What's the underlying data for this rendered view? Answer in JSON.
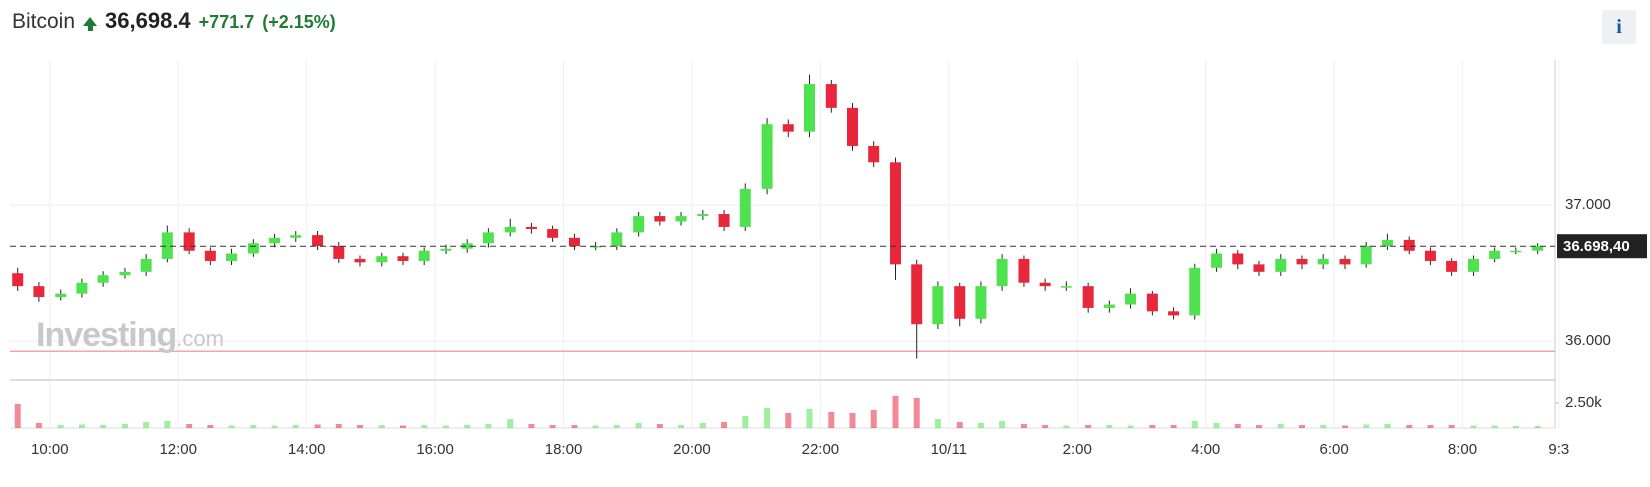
{
  "header": {
    "name": "Bitcoin",
    "price": "36,698.4",
    "change": "+771.7",
    "change_pct": "(+2.15%)",
    "info": "i"
  },
  "watermark": {
    "brand": "Investing",
    "suffix": ".com"
  },
  "chart_data": [
    {
      "type": "candlestick",
      "x": [
        9.5,
        9.83,
        10.17,
        10.5,
        10.83,
        11.17,
        11.5,
        11.83,
        12.17,
        12.5,
        12.83,
        13.17,
        13.5,
        13.83,
        14.17,
        14.5,
        14.83,
        15.17,
        15.5,
        15.83,
        16.17,
        16.5,
        16.83,
        17.17,
        17.5,
        17.83,
        18.17,
        18.5,
        18.83,
        19.17,
        19.5,
        19.83,
        20.17,
        20.5,
        20.83,
        21.17,
        21.5,
        21.83,
        22.17,
        22.5,
        22.83,
        23.17,
        23.5,
        23.83,
        24.17,
        24.5,
        24.83,
        25.17,
        25.5,
        25.83,
        26.17,
        26.5,
        26.83,
        27.17,
        27.5,
        27.83,
        28.17,
        28.5,
        28.83,
        29.17,
        29.5,
        29.83,
        30.17,
        30.5,
        30.83,
        31.17,
        31.5,
        31.83,
        32.17,
        32.5,
        32.83,
        33.17
      ],
      "open": [
        36500,
        36405,
        36325,
        36350,
        36430,
        36485,
        36510,
        36605,
        36800,
        36665,
        36590,
        36645,
        36720,
        36760,
        36780,
        36700,
        36605,
        36580,
        36625,
        36590,
        36665,
        36680,
        36720,
        36800,
        36840,
        36825,
        36760,
        36700,
        36700,
        36800,
        36920,
        36880,
        36920,
        36935,
        36840,
        37120,
        37595,
        37540,
        37890,
        37715,
        37435,
        37315,
        36565,
        36125,
        36405,
        36165,
        36405,
        36605,
        36430,
        36405,
        36405,
        36245,
        36270,
        36350,
        36220,
        36190,
        36540,
        36645,
        36565,
        36510,
        36605,
        36565,
        36605,
        36565,
        36700,
        36745,
        36665,
        36590,
        36510,
        36605,
        36665,
        36665
      ],
      "high": [
        36540,
        36435,
        36380,
        36460,
        36515,
        36540,
        36640,
        36850,
        36830,
        36690,
        36680,
        36750,
        36790,
        36810,
        36810,
        36730,
        36630,
        36650,
        36650,
        36690,
        36710,
        36750,
        36830,
        36900,
        36870,
        36850,
        36790,
        36730,
        36830,
        36950,
        36950,
        36950,
        36965,
        36965,
        37160,
        37640,
        37630,
        37960,
        37920,
        37750,
        37470,
        37350,
        36600,
        36440,
        36430,
        36440,
        36640,
        36630,
        36460,
        36440,
        36430,
        36300,
        36390,
        36370,
        36250,
        36570,
        36680,
        36670,
        36590,
        36640,
        36630,
        36640,
        36630,
        36730,
        36790,
        36770,
        36690,
        36610,
        36630,
        36690,
        36690,
        36720
      ],
      "low": [
        36370,
        36290,
        36300,
        36320,
        36400,
        36460,
        36480,
        36580,
        36640,
        36560,
        36560,
        36620,
        36690,
        36730,
        36670,
        36575,
        36550,
        36550,
        36560,
        36560,
        36640,
        36650,
        36690,
        36770,
        36790,
        36730,
        36670,
        36670,
        36670,
        36770,
        36850,
        36850,
        36890,
        36810,
        36810,
        37080,
        37500,
        37500,
        37680,
        37400,
        37280,
        36450,
        35873,
        36090,
        36110,
        36130,
        36370,
        36400,
        36370,
        36370,
        36210,
        36210,
        36240,
        36190,
        36160,
        36160,
        36510,
        36530,
        36480,
        36480,
        36530,
        36530,
        36530,
        36540,
        36670,
        36640,
        36560,
        36480,
        36480,
        36580,
        36640,
        36640
      ],
      "close": [
        36405,
        36325,
        36350,
        36430,
        36485,
        36510,
        36605,
        36800,
        36665,
        36590,
        36645,
        36720,
        36760,
        36780,
        36700,
        36605,
        36580,
        36625,
        36590,
        36665,
        36680,
        36720,
        36800,
        36840,
        36825,
        36760,
        36700,
        36700,
        36800,
        36920,
        36880,
        36920,
        36935,
        36840,
        37120,
        37595,
        37540,
        37890,
        37715,
        37435,
        37315,
        36565,
        36125,
        36405,
        36165,
        36405,
        36605,
        36430,
        36405,
        36405,
        36245,
        36270,
        36350,
        36220,
        36190,
        36540,
        36645,
        36565,
        36510,
        36605,
        36565,
        36605,
        36565,
        36700,
        36745,
        36665,
        36590,
        36510,
        36605,
        36665,
        36665,
        36698.4
      ],
      "xlim": [
        9.38,
        33.44
      ],
      "xticks": [
        {
          "value": 10,
          "label": "10:00"
        },
        {
          "value": 12,
          "label": "12:00"
        },
        {
          "value": 14,
          "label": "14:00"
        },
        {
          "value": 16,
          "label": "16:00"
        },
        {
          "value": 18,
          "label": "18:00"
        },
        {
          "value": 20,
          "label": "20:00"
        },
        {
          "value": 22,
          "label": "22:00"
        },
        {
          "value": 24,
          "label": "10/11"
        },
        {
          "value": 26,
          "label": "2:00"
        },
        {
          "value": 28,
          "label": "4:00"
        },
        {
          "value": 30,
          "label": "6:00"
        },
        {
          "value": 32,
          "label": "8:00"
        },
        {
          "value": 33.5,
          "label": "9:3"
        }
      ],
      "ylim": [
        35730,
        38030
      ],
      "yticks": [
        {
          "value": 36000,
          "label": "36.000"
        },
        {
          "value": 37000,
          "label": "37.000"
        }
      ],
      "grid": true,
      "up_color": "#4ee34e",
      "down_color": "#e8283a",
      "last_price": {
        "value": 36698.4,
        "label": "36.698,40"
      },
      "previous_close": 35926.7,
      "previous_close_color": "#f4a3a8"
    },
    {
      "type": "bar",
      "values": [
        2400,
        500,
        300,
        350,
        300,
        400,
        600,
        700,
        400,
        300,
        250,
        300,
        250,
        300,
        350,
        400,
        300,
        300,
        250,
        300,
        250,
        300,
        400,
        900,
        400,
        300,
        300,
        250,
        300,
        500,
        400,
        300,
        500,
        600,
        1200,
        2000,
        1500,
        1900,
        1600,
        1500,
        1800,
        3200,
        3000,
        900,
        600,
        500,
        700,
        400,
        300,
        250,
        300,
        300,
        250,
        300,
        300,
        700,
        500,
        400,
        300,
        400,
        300,
        300,
        250,
        350,
        400,
        300,
        300,
        300,
        250,
        250,
        200,
        200
      ],
      "ylim": [
        0,
        4580
      ],
      "yticks": [
        {
          "value": 2500,
          "label": "2.50k"
        }
      ]
    }
  ]
}
